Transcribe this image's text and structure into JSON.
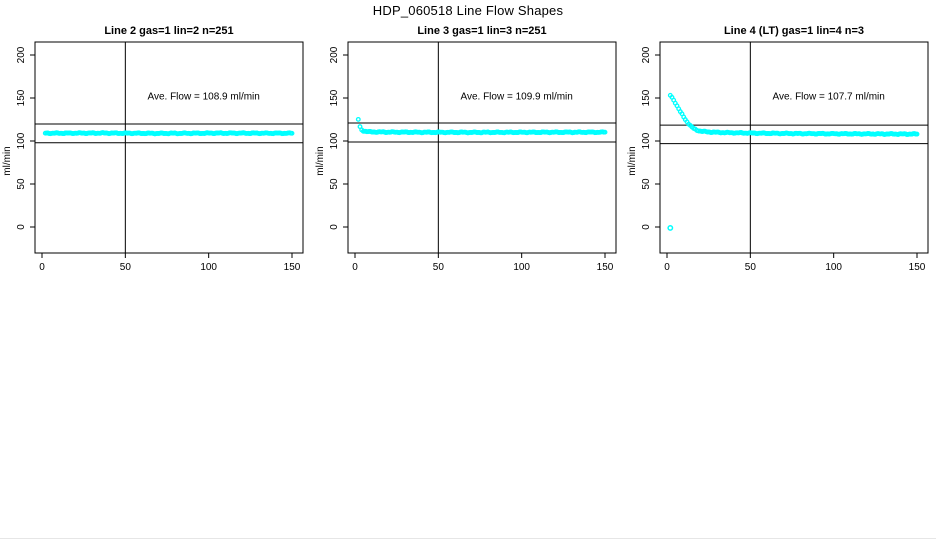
{
  "page": {
    "title": "HDP_060518  Line Flow Shapes"
  },
  "colors": {
    "marker": "#00FFFF",
    "axis": "#000000",
    "background": "#FFFFFF"
  },
  "chart_data": [
    {
      "type": "scatter",
      "title": "Line 2 gas=1 lin=2 n=251",
      "ylabel": "ml/min",
      "xlabel": "",
      "units": "ml/min",
      "ave_flow": 108.9,
      "n": 251,
      "annotation": {
        "text": "Ave. Flow =  108.9  ml/min",
        "x": 97,
        "y": 152
      },
      "xticks": [
        0,
        50,
        100,
        150
      ],
      "yticks": [
        0,
        50,
        100,
        150,
        200
      ],
      "xlim": [
        0,
        150
      ],
      "ylim": [
        -12,
        215
      ],
      "ref_hlines": [
        119.8,
        98.0
      ],
      "ref_vline": 50,
      "grid": false,
      "points": [
        [
          2,
          109
        ],
        [
          35,
          109.2
        ],
        [
          70,
          108.8
        ],
        [
          105,
          109.1
        ],
        [
          150,
          109
        ]
      ],
      "outliers": []
    },
    {
      "type": "scatter",
      "title": "Line 3 gas=1 lin=3 n=251",
      "ylabel": "ml/min",
      "xlabel": "",
      "units": "ml/min",
      "ave_flow": 109.9,
      "n": 251,
      "annotation": {
        "text": "Ave. Flow =  109.9  ml/min",
        "x": 97,
        "y": 152
      },
      "xticks": [
        0,
        50,
        100,
        150
      ],
      "yticks": [
        0,
        50,
        100,
        150,
        200
      ],
      "xlim": [
        0,
        150
      ],
      "ylim": [
        -12,
        215
      ],
      "ref_hlines": [
        120.9,
        98.9
      ],
      "ref_vline": 50,
      "grid": false,
      "points": [
        [
          2,
          125
        ],
        [
          3,
          116.5
        ],
        [
          4,
          113
        ],
        [
          5,
          111.8
        ],
        [
          7,
          110.9
        ],
        [
          10,
          110.5
        ],
        [
          20,
          110.3
        ],
        [
          40,
          110.1
        ],
        [
          70,
          110
        ],
        [
          110,
          110.1
        ],
        [
          150,
          110.2
        ]
      ],
      "outliers": []
    },
    {
      "type": "scatter",
      "title": "Line 4 (LT) gas=1 lin=4 n=3",
      "ylabel": "ml/min",
      "xlabel": "",
      "units": "ml/min",
      "ave_flow": 107.7,
      "n": 3,
      "annotation": {
        "text": "Ave. Flow =  107.7  ml/min",
        "x": 97,
        "y": 152
      },
      "xticks": [
        0,
        50,
        100,
        150
      ],
      "yticks": [
        0,
        50,
        100,
        150,
        200
      ],
      "xlim": [
        0,
        150
      ],
      "ylim": [
        -12,
        215
      ],
      "ref_hlines": [
        118.5,
        96.9
      ],
      "ref_vline": 50,
      "grid": false,
      "points": [
        [
          2,
          153
        ],
        [
          3,
          150.5
        ],
        [
          4,
          147.5
        ],
        [
          5,
          144.5
        ],
        [
          6,
          141
        ],
        [
          7,
          137.5
        ],
        [
          8,
          134
        ],
        [
          9,
          131
        ],
        [
          10,
          128
        ],
        [
          11,
          125
        ],
        [
          12,
          122.5
        ],
        [
          13,
          120
        ],
        [
          14,
          118
        ],
        [
          15,
          116
        ],
        [
          16,
          114.5
        ],
        [
          17,
          113.5
        ],
        [
          18,
          112.5
        ],
        [
          19,
          112
        ],
        [
          20,
          111.5
        ],
        [
          22,
          111
        ],
        [
          25,
          110.5
        ],
        [
          30,
          110
        ],
        [
          40,
          109.5
        ],
        [
          55,
          109
        ],
        [
          80,
          108.6
        ],
        [
          110,
          108.3
        ],
        [
          150,
          108
        ]
      ],
      "outliers": [
        [
          2,
          -1
        ]
      ]
    }
  ]
}
